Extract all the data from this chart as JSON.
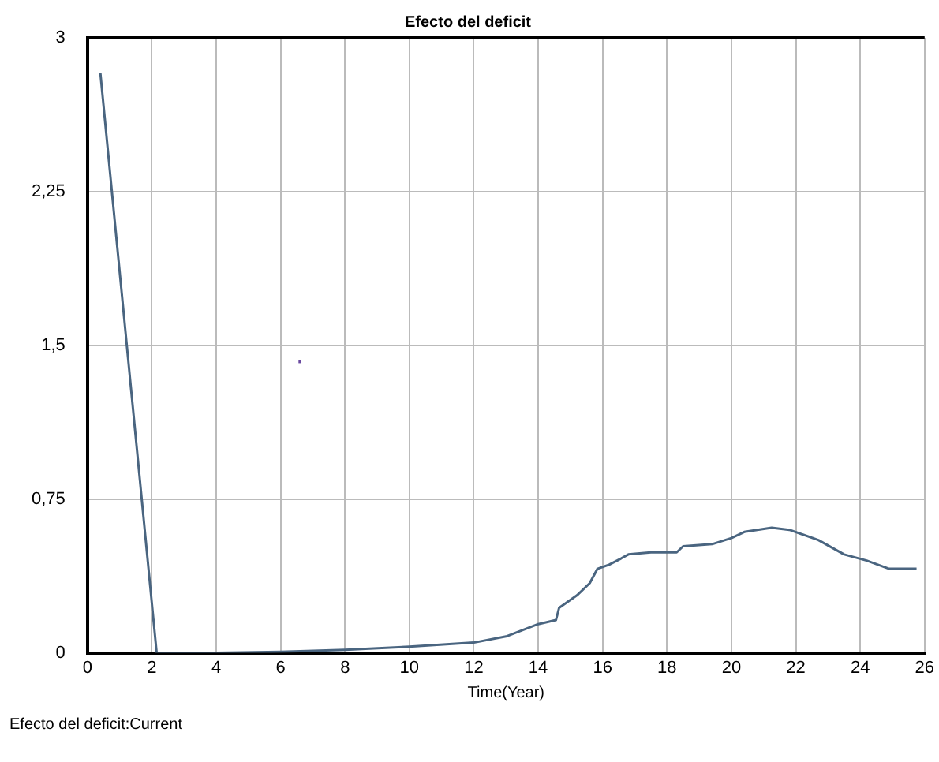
{
  "chart_data": {
    "type": "line",
    "title": "Efecto del deficit",
    "xlabel": "Time(Year)",
    "annotations": [
      "Efecto del deficit:Current"
    ],
    "series": [
      {
        "color": "#4a6580",
        "x": [
          0.4,
          2.15,
          4,
          6,
          8,
          10,
          12,
          13,
          14,
          14.55,
          14.65,
          15.2,
          15.6,
          15.84,
          16.2,
          16.57,
          16.8,
          17.5,
          18.3,
          18.5,
          19.4,
          20,
          20.4,
          21.25,
          21.8,
          22.7,
          23.5,
          24.2,
          24.9,
          25.75
        ],
        "values": [
          2.83,
          0,
          0,
          0.005,
          0.015,
          0.03,
          0.05,
          0.08,
          0.14,
          0.16,
          0.22,
          0.28,
          0.34,
          0.41,
          0.43,
          0.46,
          0.48,
          0.49,
          0.49,
          0.52,
          0.53,
          0.56,
          0.59,
          0.61,
          0.6,
          0.55,
          0.48,
          0.45,
          0.41,
          0.41
        ]
      },
      {
        "type": "scatter",
        "color": "#6a4aa0",
        "x": [
          6.6
        ],
        "values": [
          1.42
        ]
      }
    ],
    "xlim": [
      0,
      26
    ],
    "xticks": [
      0,
      2,
      4,
      6,
      8,
      10,
      12,
      14,
      16,
      18,
      20,
      22,
      24,
      26
    ],
    "ylim": [
      0,
      3
    ],
    "yticks": [
      0,
      {
        "value": 0.75,
        "label": "0,75"
      },
      {
        "value": 1.5,
        "label": "1,5"
      },
      {
        "value": 2.25,
        "label": "2,25"
      },
      3
    ],
    "grid": true,
    "legend": false
  }
}
